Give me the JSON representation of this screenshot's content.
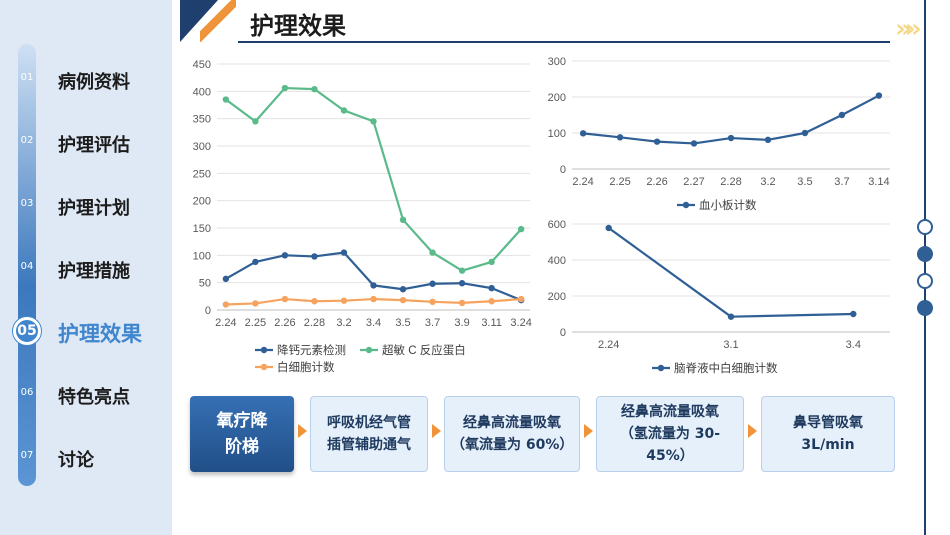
{
  "nav": {
    "items": [
      {
        "num": "01",
        "label": "病例资料"
      },
      {
        "num": "02",
        "label": "护理评估"
      },
      {
        "num": "03",
        "label": "护理计划"
      },
      {
        "num": "04",
        "label": "护理措施"
      },
      {
        "num": "05",
        "label": "护理效果"
      },
      {
        "num": "06",
        "label": "特色亮点"
      },
      {
        "num": "07",
        "label": "讨论"
      }
    ],
    "active_index": 4
  },
  "header": {
    "title": "护理效果",
    "chevrons": "»"
  },
  "colors": {
    "navy": "#1f3f6e",
    "accent_orange": "#f0943b",
    "blue_series": "#2f5f95",
    "green_series": "#5aba8a",
    "orange_series": "#f5a35f"
  },
  "chart_data": [
    {
      "type": "line",
      "categories": [
        "2.24",
        "2.25",
        "2.26",
        "2.28",
        "3.2",
        "3.4",
        "3.5",
        "3.7",
        "3.9",
        "3.11",
        "3.24"
      ],
      "ylim": [
        0,
        450
      ],
      "yticks": [
        0,
        50,
        100,
        150,
        200,
        250,
        300,
        350,
        400,
        450
      ],
      "legend_position": "bottom",
      "series": [
        {
          "name": "降钙元素检测",
          "color": "#2f5f95",
          "values": [
            57,
            88,
            100,
            98,
            105,
            45,
            38,
            48,
            49,
            40,
            18
          ]
        },
        {
          "name": "超敏 C 反应蛋白",
          "color": "#5aba8a",
          "values": [
            385,
            345,
            406,
            404,
            365,
            345,
            165,
            105,
            72,
            88,
            148
          ]
        },
        {
          "name": "白细胞计数",
          "color": "#f5a35f",
          "values": [
            10,
            12,
            20,
            16,
            17,
            20,
            18,
            15,
            13,
            16,
            20
          ]
        }
      ]
    },
    {
      "type": "line",
      "categories": [
        "2.24",
        "2.25",
        "2.26",
        "2.27",
        "2.28",
        "3.2",
        "3.5",
        "3.7",
        "3.14"
      ],
      "ylim": [
        0,
        300
      ],
      "yticks": [
        0,
        100,
        200,
        300
      ],
      "legend_position": "bottom",
      "series": [
        {
          "name": "血小板计数",
          "color": "#2f5f95",
          "values": [
            99,
            88,
            76,
            71,
            86,
            81,
            100,
            150,
            204
          ]
        }
      ]
    },
    {
      "type": "line",
      "categories": [
        "2.24",
        "3.1",
        "3.4"
      ],
      "ylim": [
        0,
        600
      ],
      "yticks": [
        0,
        200,
        400,
        600
      ],
      "legend_position": "bottom",
      "series": [
        {
          "name": "脑脊液中白细胞计数",
          "color": "#2f5f95",
          "values": [
            578,
            85,
            100
          ]
        }
      ]
    }
  ],
  "flow": {
    "steps": [
      {
        "label": "氧疗降\n阶梯"
      },
      {
        "label": "呼吸机经气管\n插管辅助通气"
      },
      {
        "label": "经鼻高流量吸氧\n（氧流量为 60%）"
      },
      {
        "label": "经鼻高流量吸氧\n（氢流量为 30-\n45%）"
      },
      {
        "label": "鼻导管吸氧\n3L/min"
      }
    ]
  }
}
